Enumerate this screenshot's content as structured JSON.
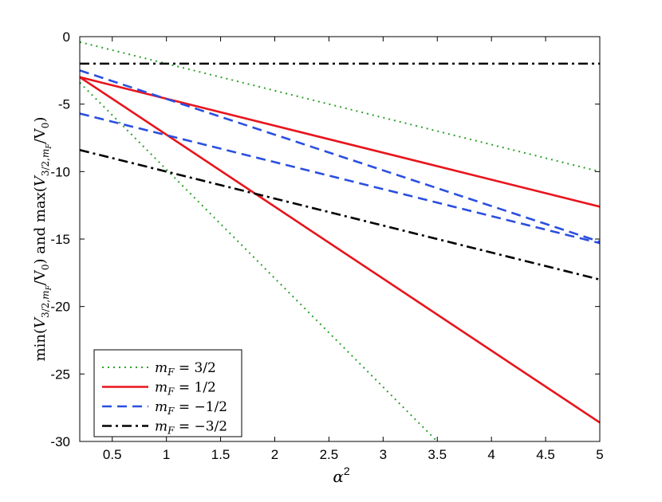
{
  "chart_data": {
    "type": "line",
    "xlabel": "α",
    "xlabel_sup": "2",
    "ylabel_parts": {
      "min": "min",
      "and": "and",
      "max": "max",
      "V": "V",
      "sub": "3/2,",
      "sub_m": "m",
      "sub_F": "F",
      "over": "/V",
      "zero": "0"
    },
    "xlim": [
      0.2,
      5
    ],
    "ylim": [
      -30,
      0
    ],
    "xticks": [
      0.5,
      1,
      1.5,
      2,
      2.5,
      3,
      3.5,
      4,
      4.5,
      5
    ],
    "xtick_labels": [
      "0.5",
      "1",
      "1.5",
      "2",
      "2.5",
      "3",
      "3.5",
      "4",
      "4.5",
      "5"
    ],
    "yticks": [
      0,
      -5,
      -10,
      -15,
      -20,
      -25,
      -30
    ],
    "ytick_labels": [
      "0",
      "-5",
      "-10",
      "-15",
      "-20",
      "-25",
      "-30"
    ],
    "grid": false,
    "legend_position": "bottom-left",
    "series": [
      {
        "name": "m_F = 3/2",
        "legend_m": "m",
        "legend_F": "F",
        "legend_rhs": " = 3/2",
        "color": "#2ca02c",
        "dash": "dotted",
        "lines": [
          {
            "x": [
              0.2,
              5
            ],
            "y": [
              -0.4,
              -10.0
            ]
          },
          {
            "x": [
              0.2,
              3.5
            ],
            "y": [
              -3.4,
              -30.0
            ]
          }
        ]
      },
      {
        "name": "m_F = 1/2",
        "legend_m": "m",
        "legend_F": "F",
        "legend_rhs": " = 1/2",
        "color": "#e8141c",
        "dash": "solid",
        "lines": [
          {
            "x": [
              0.2,
              5
            ],
            "y": [
              -3.0,
              -12.6
            ]
          },
          {
            "x": [
              0.2,
              5
            ],
            "y": [
              -3.0,
              -28.6
            ]
          }
        ]
      },
      {
        "name": "m_F = −1/2",
        "legend_m": "m",
        "legend_F": "F",
        "legend_rhs": " = −1/2",
        "color": "#2a4fe0",
        "dash": "dashed",
        "lines": [
          {
            "x": [
              0.2,
              5
            ],
            "y": [
              -2.5,
              -15.2
            ]
          },
          {
            "x": [
              0.2,
              5
            ],
            "y": [
              -5.7,
              -15.3
            ]
          }
        ]
      },
      {
        "name": "m_F = −3/2",
        "legend_m": "m",
        "legend_F": "F",
        "legend_rhs": " = −3/2",
        "color": "#000000",
        "dash": "dashdot",
        "lines": [
          {
            "x": [
              0.2,
              5
            ],
            "y": [
              -2.0,
              -2.0
            ]
          },
          {
            "x": [
              0.2,
              5
            ],
            "y": [
              -8.4,
              -18.0
            ]
          }
        ]
      }
    ]
  }
}
